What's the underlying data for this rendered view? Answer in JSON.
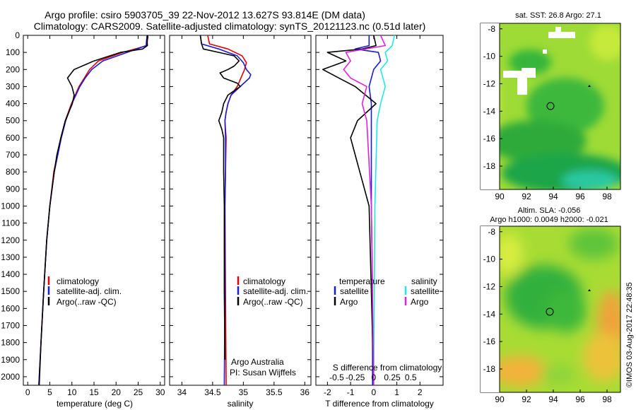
{
  "header": {
    "line1": "Argo profile: csiro 5903705_39 22-Nov-2012 13.627S 93.814E (DM data)",
    "line2": "Climatology: CARS2009. Satellite-adjusted climatology: synTS_20121123.nc (0.51d later)"
  },
  "stamp": "©IMOS 03-Aug-2017 22:48:35",
  "colors": {
    "climatology": "#e00000",
    "satellite": "#1a1ad8",
    "argo": "#000000",
    "sat_salinity": "#22e6e6",
    "argo_salinity_diff": "#e020e0"
  },
  "chart_data": [
    {
      "type": "line",
      "name": "temperature-profile",
      "xlabel": "temperature (deg C)",
      "ylabel": "depth",
      "xlim": [
        -1,
        31
      ],
      "ylim": [
        0,
        2050
      ],
      "xticks": [
        0,
        5,
        10,
        15,
        20,
        25,
        30
      ],
      "yticks": [
        0,
        100,
        200,
        300,
        400,
        500,
        600,
        700,
        800,
        900,
        1000,
        1100,
        1200,
        1300,
        1400,
        1500,
        1600,
        1700,
        1800,
        1900,
        2000
      ],
      "legend": [
        "climatology",
        "satellite-adj. clim.",
        "Argo(..raw -QC)"
      ],
      "series": [
        {
          "name": "climatology",
          "depth": [
            0,
            60,
            100,
            150,
            200,
            250,
            300,
            400,
            500,
            600,
            800,
            1000,
            1200,
            1500,
            1800,
            2050
          ],
          "values": [
            27.2,
            27.0,
            21.5,
            16.0,
            14.0,
            12.8,
            11.6,
            9.9,
            8.5,
            7.5,
            5.9,
            5.0,
            4.3,
            3.6,
            3.0,
            2.5
          ]
        },
        {
          "name": "satellite-adj. clim.",
          "depth": [
            0,
            60,
            100,
            150,
            200,
            250,
            300,
            400,
            500,
            600,
            800,
            1000,
            1200,
            1500,
            1800,
            2050
          ],
          "values": [
            27.0,
            26.8,
            22.5,
            17.0,
            14.5,
            13.0,
            11.8,
            10.0,
            8.6,
            7.6,
            6.0,
            5.0,
            4.3,
            3.6,
            3.0,
            2.5
          ]
        },
        {
          "name": "Argo(..raw -QC)",
          "depth": [
            0,
            10,
            30,
            60,
            80,
            100,
            150,
            200,
            250,
            300,
            350,
            400,
            500,
            600,
            700,
            800,
            1000,
            1200,
            1500,
            1800,
            2050
          ],
          "values": [
            27.1,
            27.2,
            27.0,
            27.1,
            26.0,
            21.0,
            15.0,
            10.5,
            9.0,
            10.0,
            10.5,
            10.1,
            8.5,
            7.5,
            6.6,
            6.0,
            5.0,
            4.3,
            3.6,
            3.0,
            2.6
          ]
        }
      ]
    },
    {
      "type": "line",
      "name": "salinity-profile",
      "xlabel": "salinity",
      "xlim": [
        33.8,
        36.1
      ],
      "ylim": [
        0,
        2050
      ],
      "xticks": [
        34,
        34.5,
        35,
        35.5,
        36
      ],
      "legend": [
        "climatology",
        "satellite-adj. clim.",
        "Argo(..raw -QC)"
      ],
      "annotation": [
        "Argo Australia",
        "PI: Susan Wijffels"
      ],
      "series": [
        {
          "name": "climatology",
          "depth": [
            0,
            50,
            80,
            120,
            160,
            200,
            250,
            300,
            350,
            400,
            450,
            500,
            550,
            600,
            800,
            1000,
            1500,
            2050
          ],
          "values": [
            34.42,
            34.45,
            34.75,
            34.98,
            35.05,
            35.02,
            34.96,
            34.9,
            34.8,
            34.75,
            34.72,
            34.7,
            34.71,
            34.72,
            34.71,
            34.7,
            34.71,
            34.72
          ]
        },
        {
          "name": "satellite-adj. clim.",
          "depth": [
            0,
            50,
            80,
            120,
            160,
            200,
            230,
            250,
            300,
            350,
            400,
            450,
            500,
            600,
            800,
            1000,
            1500,
            2050
          ],
          "values": [
            34.3,
            34.32,
            34.6,
            34.9,
            35.0,
            35.05,
            35.12,
            35.1,
            34.95,
            34.8,
            34.75,
            34.72,
            34.7,
            34.71,
            34.71,
            34.7,
            34.7,
            34.69
          ]
        },
        {
          "name": "Argo(..raw -QC)",
          "depth": [
            0,
            50,
            80,
            100,
            120,
            150,
            180,
            200,
            220,
            250,
            280,
            300,
            350,
            400,
            450,
            500,
            550,
            600,
            800,
            1000,
            1500,
            1900
          ],
          "values": [
            34.3,
            34.32,
            34.35,
            34.6,
            34.85,
            34.93,
            34.85,
            34.75,
            34.62,
            34.68,
            34.9,
            34.95,
            34.75,
            34.68,
            34.65,
            34.6,
            34.65,
            34.68,
            34.68,
            34.69,
            34.69,
            34.7
          ]
        }
      ]
    },
    {
      "type": "line",
      "name": "difference-profile",
      "xlabel": "T difference from climatology",
      "x2label": "S difference from climatology",
      "xlim": [
        -2.5,
        3
      ],
      "ylim": [
        0,
        2050
      ],
      "xticks": [
        -2,
        -1,
        0,
        1,
        2
      ],
      "x2ticks": [
        "-0.5",
        "-0.25",
        "0",
        "0.25",
        "0.5"
      ],
      "legend_temperature": [
        "temperature",
        "satellite",
        "Argo"
      ],
      "legend_salinity": [
        "salinity",
        "satellite",
        "Argo"
      ],
      "series": [
        {
          "name": "temperature satellite",
          "depth": [
            0,
            60,
            80,
            100,
            150,
            200,
            300,
            400,
            500,
            700,
            1000,
            1500,
            2050
          ],
          "values": [
            -0.2,
            -0.2,
            -0.8,
            0.2,
            0.3,
            0.0,
            -0.2,
            -0.1,
            -0.1,
            -0.1,
            -0.1,
            -0.05,
            -0.05
          ]
        },
        {
          "name": "temperature Argo",
          "depth": [
            0,
            60,
            80,
            100,
            150,
            200,
            250,
            300,
            400,
            500,
            600,
            700,
            1000,
            1500,
            2050
          ],
          "values": [
            0,
            0.1,
            -0.5,
            -2.0,
            -1.2,
            -2.2,
            -1.5,
            -0.8,
            0.1,
            -0.7,
            -1.0,
            -0.8,
            -0.2,
            -0.1,
            0.0
          ]
        },
        {
          "name": "salinity satellite",
          "depth": [
            0,
            60,
            100,
            150,
            200,
            300,
            400,
            500,
            1000,
            2050
          ],
          "values": [
            0.9,
            0.8,
            0.5,
            0.6,
            0.3,
            0.5,
            0.3,
            0.15,
            0.05,
            0.0
          ]
        },
        {
          "name": "salinity Argo",
          "depth": [
            0,
            60,
            100,
            150,
            200,
            250,
            300,
            400,
            500,
            1000,
            2050
          ],
          "values": [
            0.3,
            0.5,
            -1.2,
            -1.0,
            -1.3,
            -1.0,
            -0.3,
            -0.5,
            -0.3,
            -0.1,
            0.0
          ]
        }
      ]
    },
    {
      "type": "heatmap",
      "name": "sst-map",
      "title": "sat. SST: 26.8 Argo: 27.1",
      "xlim": [
        89,
        99
      ],
      "ylim": [
        -19.7,
        -7.6
      ],
      "xticks": [
        "90",
        "92",
        "94",
        "96",
        "98"
      ],
      "yticks": [
        "-8",
        "-10",
        "-12",
        "-14",
        "-16",
        "-18"
      ],
      "marker": {
        "lon": 93.814,
        "lat": -13.627
      }
    },
    {
      "type": "heatmap",
      "name": "sla-map",
      "title": "Altim. SLA: -0.056",
      "subtitle": "Argo h1000: 0.0049 h2000: -0.021",
      "xlim": [
        89,
        99
      ],
      "ylim": [
        -19.7,
        -7.6
      ],
      "xticks": [
        "90",
        "92",
        "94",
        "96",
        "98"
      ],
      "yticks": [
        "-8",
        "-10",
        "-12",
        "-14",
        "-16",
        "-18"
      ],
      "marker": {
        "lon": 93.814,
        "lat": -13.627
      }
    }
  ]
}
